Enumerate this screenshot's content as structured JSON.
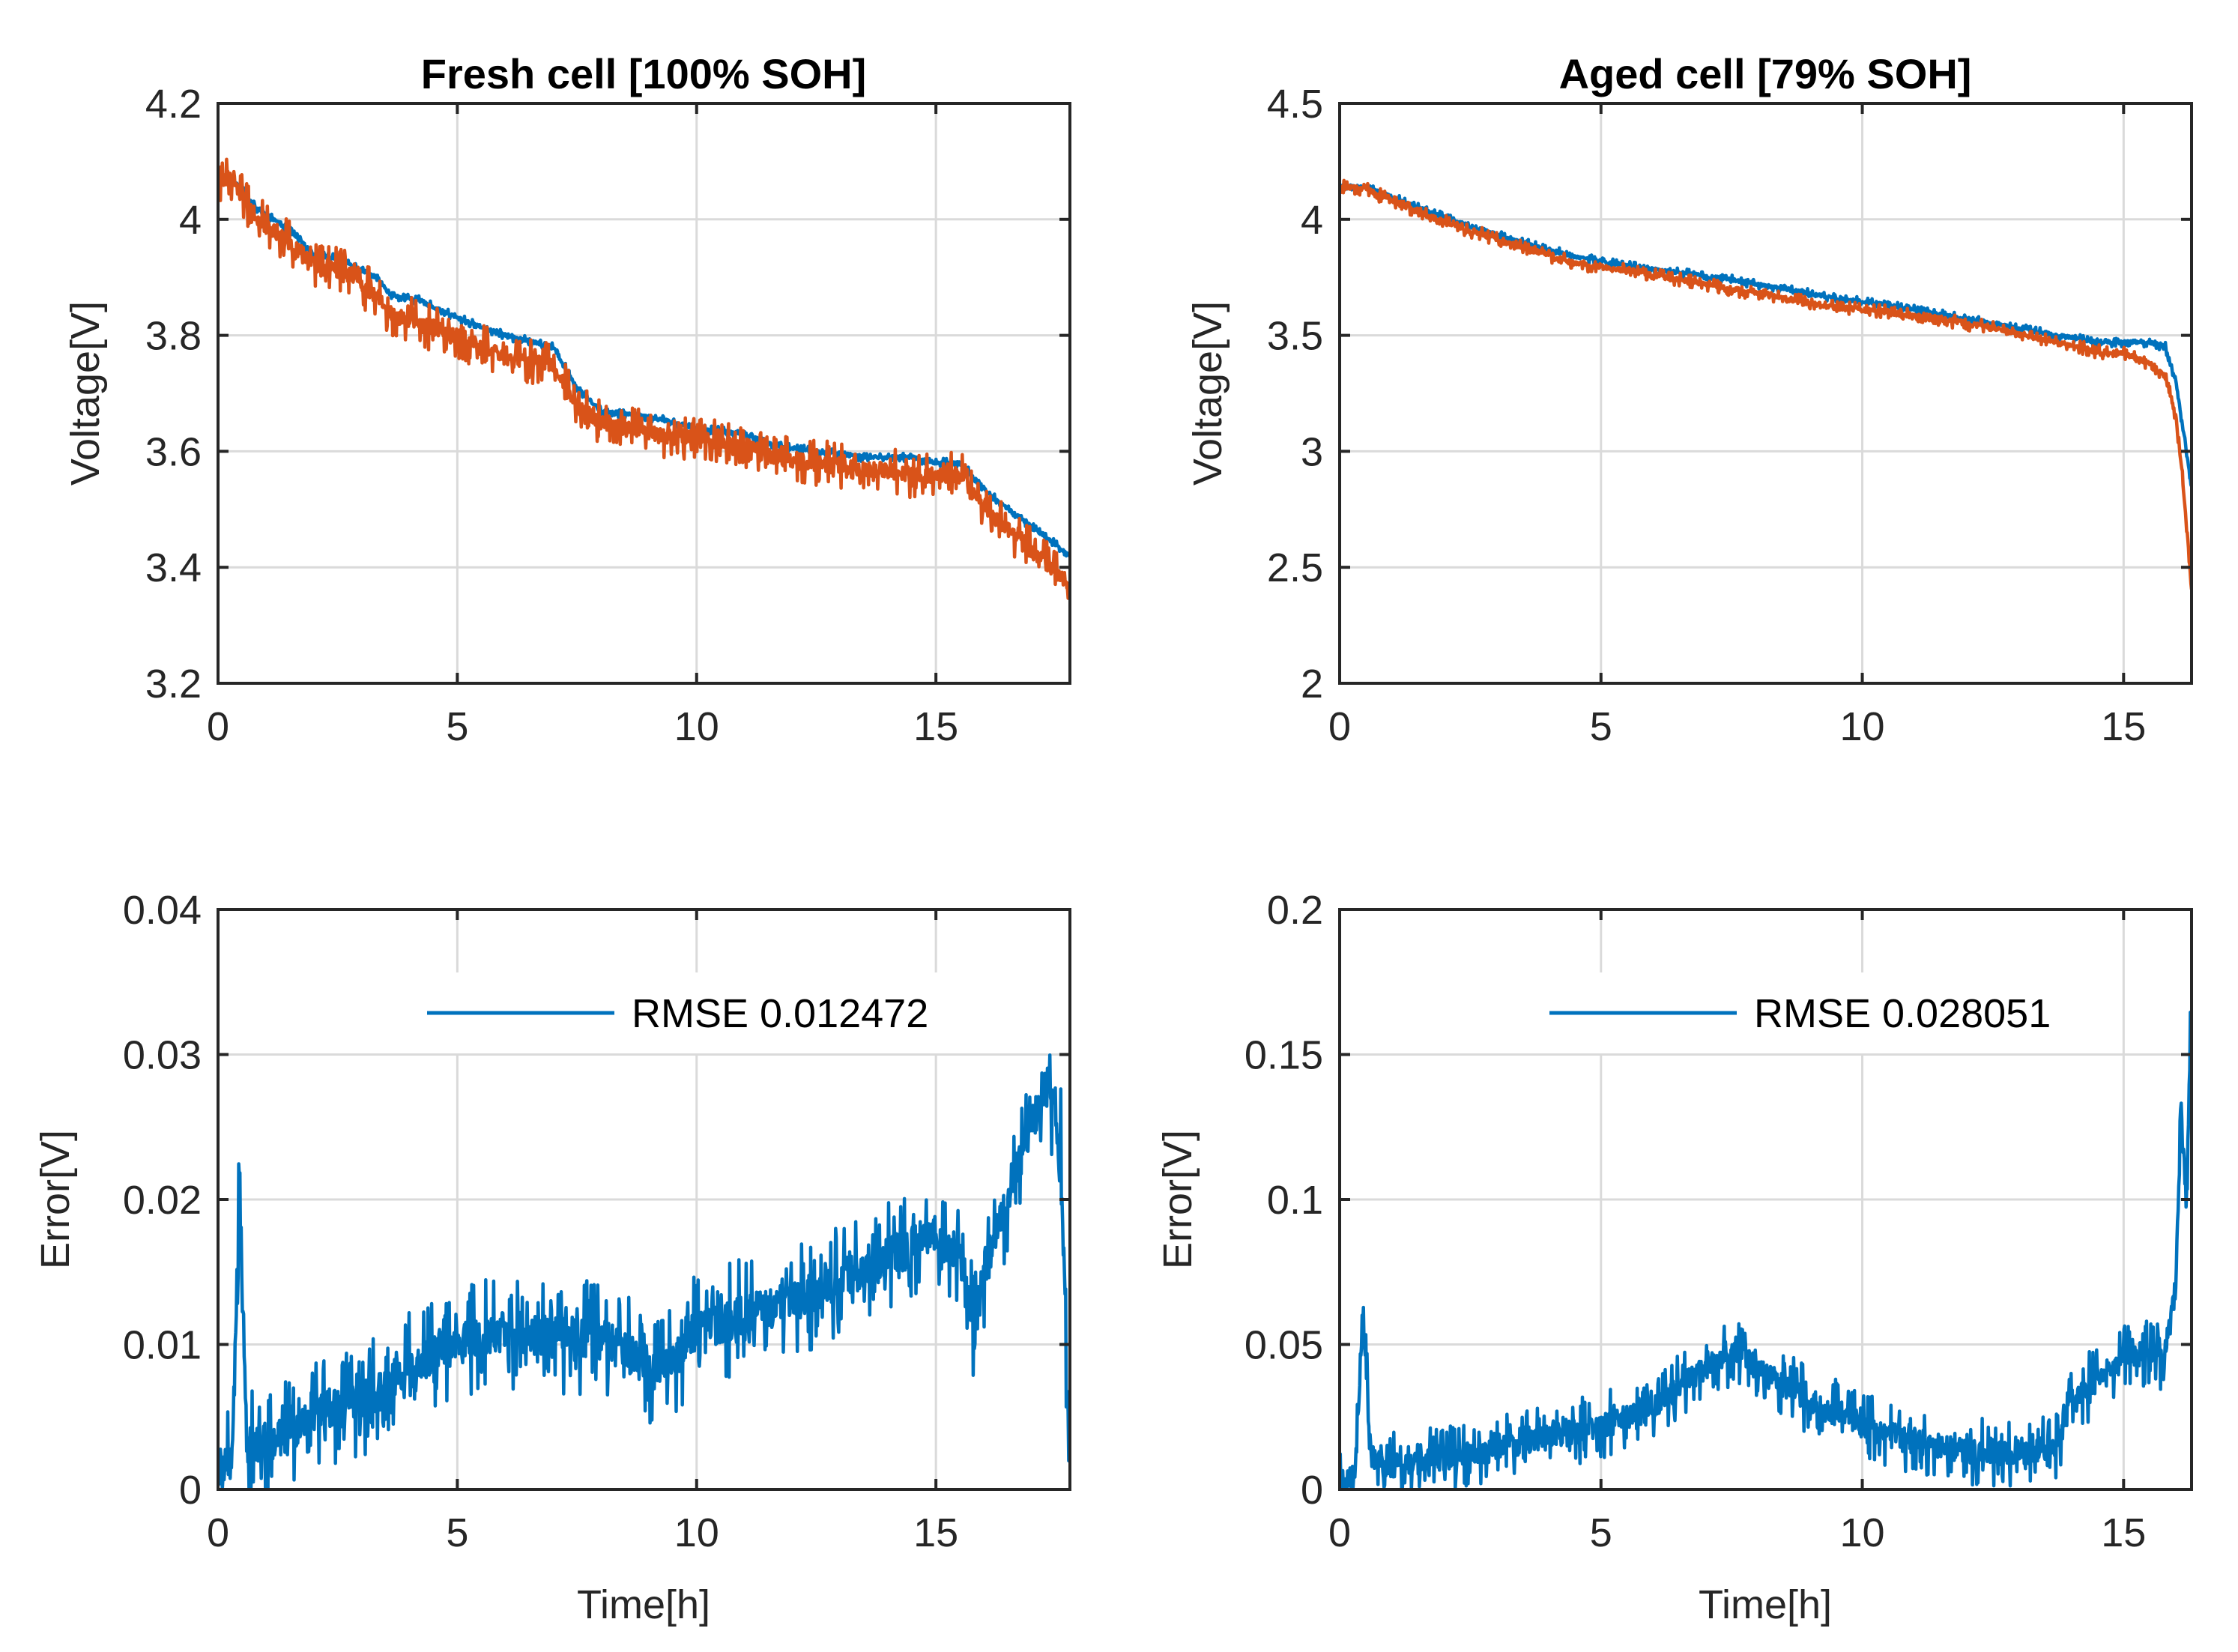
{
  "chart_data": [
    {
      "type": "line",
      "title": "Fresh cell [100% SOH]",
      "xlabel": "",
      "ylabel": "Voltage[V]",
      "xlim": [
        0,
        17.8
      ],
      "ylim": [
        3.2,
        4.2
      ],
      "xticks": [
        0,
        5,
        10,
        15
      ],
      "xtick_labels": [
        "0",
        "5",
        "10",
        "15"
      ],
      "yticks": [
        3.2,
        3.4,
        3.6,
        3.8,
        4.0,
        4.2
      ],
      "ytick_labels": [
        "3.2",
        "3.4",
        "3.6",
        "3.8",
        "4",
        "4.2"
      ],
      "grid": true,
      "series": [
        {
          "color": "#0072BD",
          "noise": 0.008,
          "x": [
            0,
            0.3,
            0.8,
            1.5,
            2.0,
            2.6,
            3.3,
            3.6,
            4.2,
            5.0,
            6.0,
            7.0,
            7.5,
            8.0,
            9.0,
            10.0,
            11.0,
            11.6,
            12.5,
            13.5,
            14.5,
            15.0,
            15.5,
            16.2,
            17.0,
            17.8
          ],
          "y": [
            4.07,
            4.07,
            4.02,
            3.98,
            3.94,
            3.93,
            3.9,
            3.87,
            3.86,
            3.83,
            3.8,
            3.78,
            3.71,
            3.67,
            3.66,
            3.64,
            3.63,
            3.61,
            3.6,
            3.59,
            3.59,
            3.58,
            3.58,
            3.52,
            3.47,
            3.42
          ]
        },
        {
          "color": "#D95319",
          "noise": 0.04,
          "x": [
            0,
            0.3,
            0.8,
            1.5,
            2.0,
            2.6,
            3.3,
            3.6,
            4.2,
            5.0,
            6.0,
            7.0,
            7.5,
            8.0,
            9.0,
            10.0,
            11.0,
            11.6,
            12.5,
            13.5,
            14.5,
            15.0,
            15.5,
            16.2,
            17.0,
            17.8
          ],
          "y": [
            4.07,
            4.07,
            4.0,
            3.96,
            3.92,
            3.91,
            3.87,
            3.84,
            3.82,
            3.8,
            3.76,
            3.75,
            3.68,
            3.65,
            3.63,
            3.62,
            3.61,
            3.59,
            3.58,
            3.57,
            3.56,
            3.56,
            3.56,
            3.49,
            3.43,
            3.37
          ]
        }
      ]
    },
    {
      "type": "line",
      "title": "Aged cell [79% SOH]",
      "xlabel": "",
      "ylabel": "Voltage[V]",
      "xlim": [
        0,
        16.3
      ],
      "ylim": [
        2.0,
        4.5
      ],
      "xticks": [
        0,
        5,
        10,
        15
      ],
      "xtick_labels": [
        "0",
        "5",
        "10",
        "15"
      ],
      "yticks": [
        2.0,
        2.5,
        3.0,
        3.5,
        4.0,
        4.5
      ],
      "ytick_labels": [
        "2",
        "2.5",
        "3",
        "3.5",
        "4",
        "4.5"
      ],
      "grid": true,
      "series": [
        {
          "color": "#0072BD",
          "noise": 0.02,
          "x": [
            0,
            0.5,
            1.5,
            2.5,
            3.5,
            4.5,
            5.5,
            6.5,
            7.5,
            8.5,
            9.5,
            10.5,
            11.5,
            12.5,
            13.5,
            14.5,
            15.0,
            15.5,
            15.8,
            16.0,
            16.1,
            16.2,
            16.3
          ],
          "y": [
            4.14,
            4.14,
            4.05,
            3.97,
            3.9,
            3.84,
            3.8,
            3.77,
            3.74,
            3.7,
            3.66,
            3.63,
            3.59,
            3.55,
            3.51,
            3.47,
            3.47,
            3.47,
            3.45,
            3.3,
            3.15,
            3.0,
            2.85
          ]
        },
        {
          "color": "#D95319",
          "noise": 0.03,
          "x": [
            0,
            0.5,
            1.5,
            2.5,
            3.5,
            4.5,
            5.5,
            6.5,
            7.5,
            8.5,
            9.5,
            10.5,
            11.5,
            12.5,
            13.5,
            14.5,
            15.0,
            15.5,
            15.8,
            16.0,
            16.1,
            16.2,
            16.3
          ],
          "y": [
            4.14,
            4.13,
            4.03,
            3.95,
            3.88,
            3.81,
            3.78,
            3.74,
            3.7,
            3.66,
            3.62,
            3.6,
            3.57,
            3.53,
            3.48,
            3.43,
            3.42,
            3.38,
            3.32,
            3.15,
            2.95,
            2.7,
            2.4
          ]
        }
      ]
    },
    {
      "type": "line",
      "title": "",
      "xlabel": "Time[h]",
      "ylabel": "Error[V]",
      "xlim": [
        0,
        17.8
      ],
      "ylim": [
        0,
        0.04
      ],
      "xticks": [
        0,
        5,
        10,
        15
      ],
      "xtick_labels": [
        "0",
        "5",
        "10",
        "15"
      ],
      "yticks": [
        0,
        0.01,
        0.02,
        0.03,
        0.04
      ],
      "ytick_labels": [
        "0",
        "0.01",
        "0.02",
        "0.03",
        "0.04"
      ],
      "grid": true,
      "legend": "top-right",
      "series": [
        {
          "name": "RMSE 0.012472",
          "color": "#0072BD",
          "noise": 0.004,
          "x": [
            0,
            0.3,
            0.45,
            0.6,
            1.0,
            1.5,
            2.0,
            3.0,
            3.5,
            4.0,
            5.0,
            6.0,
            7.0,
            8.0,
            9.0,
            9.5,
            10.0,
            11.0,
            12.0,
            13.0,
            13.5,
            14.0,
            15.0,
            15.5,
            15.8,
            16.0,
            16.5,
            17.0,
            17.3,
            17.6,
            17.8
          ],
          "y": [
            0.0015,
            0.0015,
            0.023,
            0.003,
            0.003,
            0.004,
            0.0055,
            0.006,
            0.007,
            0.0085,
            0.01,
            0.011,
            0.0105,
            0.0105,
            0.0085,
            0.009,
            0.011,
            0.012,
            0.013,
            0.0145,
            0.015,
            0.016,
            0.0175,
            0.016,
            0.011,
            0.015,
            0.02,
            0.025,
            0.028,
            0.025,
            0.0
          ]
        }
      ]
    },
    {
      "type": "line",
      "title": "",
      "xlabel": "Time[h]",
      "ylabel": "Error[V]",
      "xlim": [
        0,
        16.3
      ],
      "ylim": [
        0,
        0.2
      ],
      "xticks": [
        0,
        5,
        10,
        15
      ],
      "xtick_labels": [
        "0",
        "5",
        "10",
        "15"
      ],
      "yticks": [
        0,
        0.05,
        0.1,
        0.15,
        0.2
      ],
      "ytick_labels": [
        "0",
        "0.05",
        "0.1",
        "0.15",
        "0.2"
      ],
      "grid": true,
      "legend": "top-right",
      "series": [
        {
          "name": "RMSE 0.028051",
          "color": "#0072BD",
          "noise": 0.012,
          "x": [
            0,
            0.3,
            0.45,
            0.6,
            1.0,
            2.0,
            3.0,
            4.0,
            5.0,
            6.0,
            7.0,
            7.5,
            8.0,
            9.0,
            10.0,
            11.0,
            12.0,
            13.0,
            13.7,
            14.0,
            14.5,
            15.0,
            15.5,
            15.8,
            16.0,
            16.1,
            16.2,
            16.3
          ],
          "y": [
            0.0,
            0.005,
            0.06,
            0.01,
            0.008,
            0.01,
            0.014,
            0.018,
            0.022,
            0.028,
            0.042,
            0.048,
            0.042,
            0.03,
            0.022,
            0.017,
            0.013,
            0.012,
            0.015,
            0.03,
            0.038,
            0.045,
            0.048,
            0.045,
            0.07,
            0.13,
            0.1,
            0.17
          ]
        }
      ]
    }
  ]
}
